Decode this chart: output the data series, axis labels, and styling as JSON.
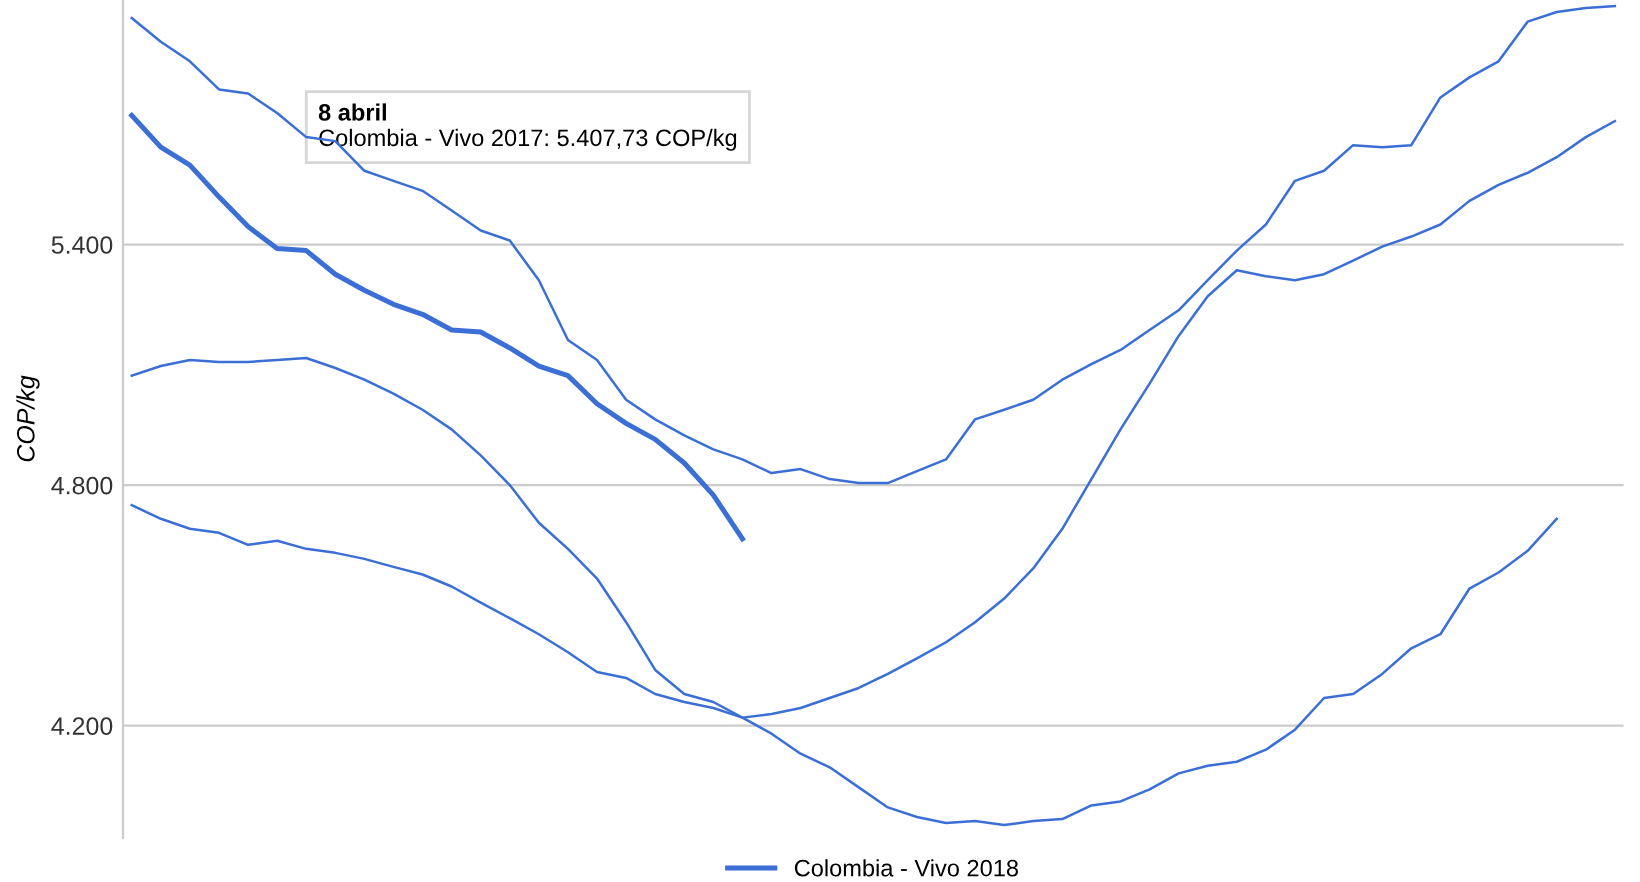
{
  "chart_data": {
    "type": "line",
    "ylabel": "COP/kg",
    "categories": [
      null,
      null,
      null,
      null,
      null,
      null,
      null,
      null,
      null,
      null,
      null,
      null,
      null,
      null,
      null,
      null,
      null,
      null,
      null,
      null,
      null,
      null,
      null,
      null,
      null,
      null,
      null,
      null,
      null,
      null,
      null,
      null,
      null,
      null,
      null,
      null,
      null,
      null,
      null,
      null,
      null,
      null,
      null,
      null,
      null,
      null,
      null,
      null,
      null,
      null,
      null,
      null
    ],
    "series": [
      {
        "color": "#3b6fd6",
        "values": [
          5965,
          5906,
          5857,
          5787,
          5777,
          5728,
          5668,
          5658,
          5584,
          5559,
          5534,
          5485,
          5435,
          5410,
          5311,
          5162,
          5112,
          5013,
          4964,
          4924,
          4889,
          4864,
          4830,
          4840,
          4815,
          4805,
          4805,
          4835,
          4864,
          4964,
          4988,
          5013,
          5063,
          5102,
          5137,
          5187,
          5236,
          5311,
          5385,
          5450,
          5559,
          5584,
          5648,
          5643,
          5648,
          5767,
          5817,
          5857,
          5956,
          5980,
          5990,
          5995
        ]
      },
      {
        "name": "Colombia - Vivo 2018",
        "color": "#3b6fd6",
        "values": [
          5722,
          5643,
          5598,
          5519,
          5445,
          5390,
          5385,
          5326,
          5286,
          5251,
          5226,
          5187,
          5182,
          5142,
          5097,
          5073,
          5003,
          4954,
          4914,
          4855,
          4775,
          4666,
          null,
          null,
          null,
          null,
          null,
          null,
          null,
          null,
          null,
          null,
          null,
          null,
          null,
          null,
          null,
          null,
          null,
          null,
          null,
          null,
          null,
          null,
          null,
          null,
          null,
          null,
          null,
          null,
          null,
          null
        ]
      },
      {
        "color": "#3b6fd6",
        "values": [
          5073,
          5097,
          5112,
          5107,
          5107,
          5112,
          5117,
          5092,
          5063,
          5028,
          4988,
          4939,
          4874,
          4800,
          4706,
          4641,
          4567,
          4458,
          4339,
          4279,
          4259,
          4220,
          4229,
          4244,
          4269,
          4294,
          4329,
          4368,
          4408,
          4458,
          4517,
          4592,
          4691,
          4815,
          4939,
          5053,
          5172,
          5271,
          5336,
          5321,
          5311,
          5326,
          5360,
          5395,
          5420,
          5450,
          5509,
          5549,
          5579,
          5618,
          5668,
          5708
        ]
      },
      {
        "color": "#3b6fd6",
        "values": [
          4750,
          4716,
          4691,
          4681,
          4651,
          4661,
          4641,
          4631,
          4616,
          4596,
          4577,
          4547,
          4507,
          4468,
          4428,
          4383,
          4334,
          4319,
          4279,
          4259,
          4244,
          4220,
          4180,
          4130,
          4096,
          4046,
          3996,
          3972,
          3957,
          3962,
          3952,
          3962,
          3967,
          4001,
          4011,
          4041,
          4081,
          4100,
          4110,
          4140,
          4190,
          4269,
          4279,
          4329,
          4393,
          4428,
          4542,
          4582,
          4636,
          4716,
          null,
          null
        ]
      }
    ],
    "ylim": [
      3920,
      6010
    ],
    "yticks": [
      {
        "value": 4200,
        "label": "4.200"
      },
      {
        "value": 4800,
        "label": "4.800"
      },
      {
        "value": 5400,
        "label": "5.400"
      }
    ],
    "grid": "y",
    "legend": "bottom",
    "tick_labels": "y",
    "marker": "none",
    "line_style": "solid",
    "annotations": [
      "8 abril",
      "Colombia - Vivo 2017: 5.407,73 COP/kg"
    ]
  }
}
